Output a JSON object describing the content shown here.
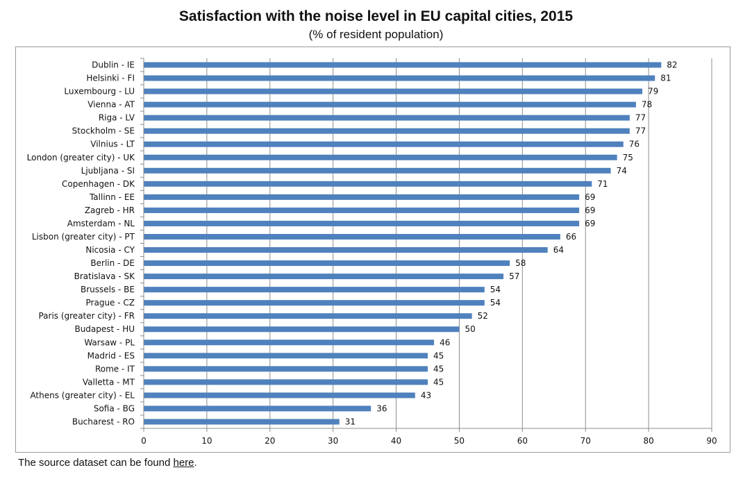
{
  "chart_data": {
    "type": "bar",
    "orientation": "horizontal",
    "title": "Satisfaction with the noise level in EU capital cities, 2015",
    "subtitle": "(% of resident population)",
    "xlabel": "",
    "ylabel": "",
    "xlim": [
      0,
      90
    ],
    "xticks": [
      0,
      10,
      20,
      30,
      40,
      50,
      60,
      70,
      80,
      90
    ],
    "grid": true,
    "legend": "none",
    "bar_color": "#4f81bd",
    "categories": [
      "Dublin - IE",
      "Helsinki - FI",
      "Luxembourg - LU",
      "Vienna - AT",
      "Riga - LV",
      "Stockholm - SE",
      "Vilnius - LT",
      "London (greater city) - UK",
      "Ljubljana - SI",
      "Copenhagen - DK",
      "Tallinn - EE",
      "Zagreb - HR",
      "Amsterdam - NL",
      "Lisbon (greater city) - PT",
      "Nicosia - CY",
      "Berlin - DE",
      "Bratislava - SK",
      "Brussels - BE",
      "Prague - CZ",
      "Paris (greater city) - FR",
      "Budapest - HU",
      "Warsaw - PL",
      "Madrid - ES",
      "Rome - IT",
      "Valletta - MT",
      "Athens (greater city) - EL",
      "Sofia - BG",
      "Bucharest - RO"
    ],
    "values": [
      82,
      81,
      79,
      78,
      77,
      77,
      76,
      75,
      74,
      71,
      69,
      69,
      69,
      66,
      64,
      58,
      57,
      54,
      54,
      52,
      50,
      46,
      45,
      45,
      45,
      43,
      36,
      31
    ]
  },
  "footer": {
    "text_before": "The source dataset can be found ",
    "link_text": "here",
    "text_after": "."
  }
}
